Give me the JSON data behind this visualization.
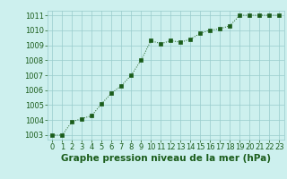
{
  "x": [
    0,
    1,
    2,
    3,
    4,
    5,
    6,
    7,
    8,
    9,
    10,
    11,
    12,
    13,
    14,
    15,
    16,
    17,
    18,
    19,
    20,
    21,
    22,
    23
  ],
  "y": [
    1003.0,
    1003.0,
    1003.9,
    1004.1,
    1004.3,
    1005.1,
    1005.8,
    1006.3,
    1007.0,
    1008.0,
    1009.3,
    1009.1,
    1009.3,
    1009.2,
    1009.4,
    1009.8,
    1010.0,
    1010.1,
    1010.3,
    1011.0,
    1011.0,
    1011.0,
    1011.0,
    1011.0
  ],
  "ylim": [
    1002.7,
    1011.3
  ],
  "yticks": [
    1003,
    1004,
    1005,
    1006,
    1007,
    1008,
    1009,
    1010,
    1011
  ],
  "xticks": [
    0,
    1,
    2,
    3,
    4,
    5,
    6,
    7,
    8,
    9,
    10,
    11,
    12,
    13,
    14,
    15,
    16,
    17,
    18,
    19,
    20,
    21,
    22,
    23
  ],
  "line_color": "#1a5c1a",
  "marker_color": "#1a5c1a",
  "bg_color": "#cdf0ee",
  "grid_color": "#99cccc",
  "xlabel": "Graphe pression niveau de la mer (hPa)",
  "xlabel_color": "#1a5c1a",
  "tick_color": "#1a5c1a",
  "xlabel_fontsize": 7.5,
  "tick_fontsize": 6.0
}
